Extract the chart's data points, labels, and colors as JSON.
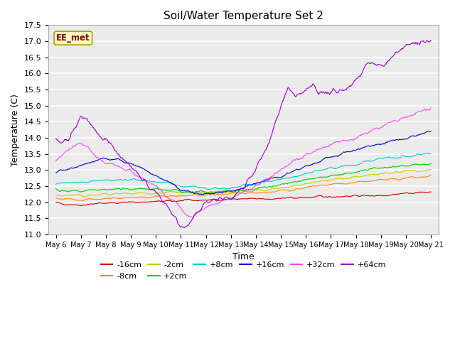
{
  "title": "Soil/Water Temperature Set 2",
  "xlabel": "Time",
  "ylabel": "Temperature (C)",
  "ylim": [
    11.0,
    17.5
  ],
  "yticks": [
    11.0,
    11.5,
    12.0,
    12.5,
    13.0,
    13.5,
    14.0,
    14.5,
    15.0,
    15.5,
    16.0,
    16.5,
    17.0,
    17.5
  ],
  "xtick_labels": [
    "May 6",
    "May 7",
    "May 8",
    "May 9",
    "May 10",
    "May 11",
    "May 12",
    "May 13",
    "May 14",
    "May 15",
    "May 16",
    "May 17",
    "May 18",
    "May 19",
    "May 20",
    "May 21"
  ],
  "xtick_positions": [
    6,
    7,
    8,
    9,
    10,
    11,
    12,
    13,
    14,
    15,
    16,
    17,
    18,
    19,
    20,
    21
  ],
  "series": [
    {
      "label": "-16cm",
      "color": "#cc0000"
    },
    {
      "label": "-8cm",
      "color": "#ff8800"
    },
    {
      "label": "-2cm",
      "color": "#cccc00"
    },
    {
      "label": "+2cm",
      "color": "#00cc00"
    },
    {
      "label": "+8cm",
      "color": "#00cccc"
    },
    {
      "label": "+16cm",
      "color": "#0000cc"
    },
    {
      "label": "+32cm",
      "color": "#ff44ff"
    },
    {
      "label": "+64cm",
      "color": "#9900cc"
    }
  ],
  "annotation_text": "EE_met",
  "fig_bg": "#ffffff",
  "plot_bg": "#ffffff",
  "grid_color": "#dddddd"
}
